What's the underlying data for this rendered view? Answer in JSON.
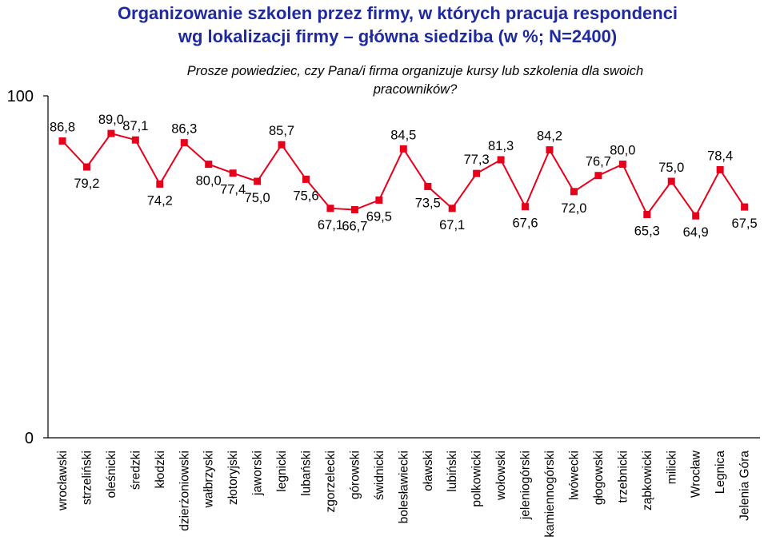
{
  "title_line1": "Organizowanie szkolen przez firmy, w których pracuja respondenci",
  "title_line2": "wg lokalizacji firmy – główna siedziba (w %; N=2400)",
  "subtitle_line1": "Prosze powiedziec, czy Pana/i firma organizuje kursy lub szkolenia dla swoich",
  "subtitle_line2": "pracowników?",
  "colors": {
    "title": "#1f2a9e",
    "series": "#e8001a",
    "axis": "#000000"
  },
  "chart_data": {
    "type": "line",
    "ylim": [
      0,
      100
    ],
    "yticks": [
      "0",
      "100"
    ],
    "grid": false,
    "legend": "none",
    "categories": [
      "wrocławski",
      "strzeliński",
      "oleśnicki",
      "średzki",
      "kłodzki",
      "dzierżoniowski",
      "wałbrzyski",
      "złotoryjski",
      "jaworski",
      "legnicki",
      "lubański",
      "zgorzelecki",
      "górowski",
      "świdnicki",
      "bolesławiecki",
      "oławski",
      "lubiński",
      "polkowicki",
      "wołowski",
      "jeleniogórski",
      "kamiennogórski",
      "lwówecki",
      "głogowski",
      "trzebnicki",
      "ząbkowicki",
      "milicki",
      "Wrocław",
      "Legnica",
      "Jelenia Góra"
    ],
    "values": [
      86.8,
      79.2,
      89.0,
      87.1,
      74.2,
      86.3,
      80.0,
      77.4,
      75.0,
      85.7,
      75.6,
      67.1,
      66.7,
      69.5,
      84.5,
      73.5,
      67.1,
      77.3,
      81.3,
      67.6,
      84.2,
      72.0,
      76.7,
      80.0,
      65.3,
      75.0,
      64.9,
      78.4,
      67.5
    ],
    "labels": [
      "86,8",
      "79,2",
      "89,0",
      "87,1",
      "74,2",
      "86,3",
      "80,0",
      "77,4",
      "75,0",
      "85,7",
      "75,6",
      "67,1",
      "66,7",
      "69,5",
      "84,5",
      "73,5",
      "67,1",
      "77,3",
      "81,3",
      "67,6",
      "84,2",
      "72,0",
      "76,7",
      "80,0",
      "65,3",
      "75,0",
      "64,9",
      "78,4",
      "67,5"
    ]
  }
}
